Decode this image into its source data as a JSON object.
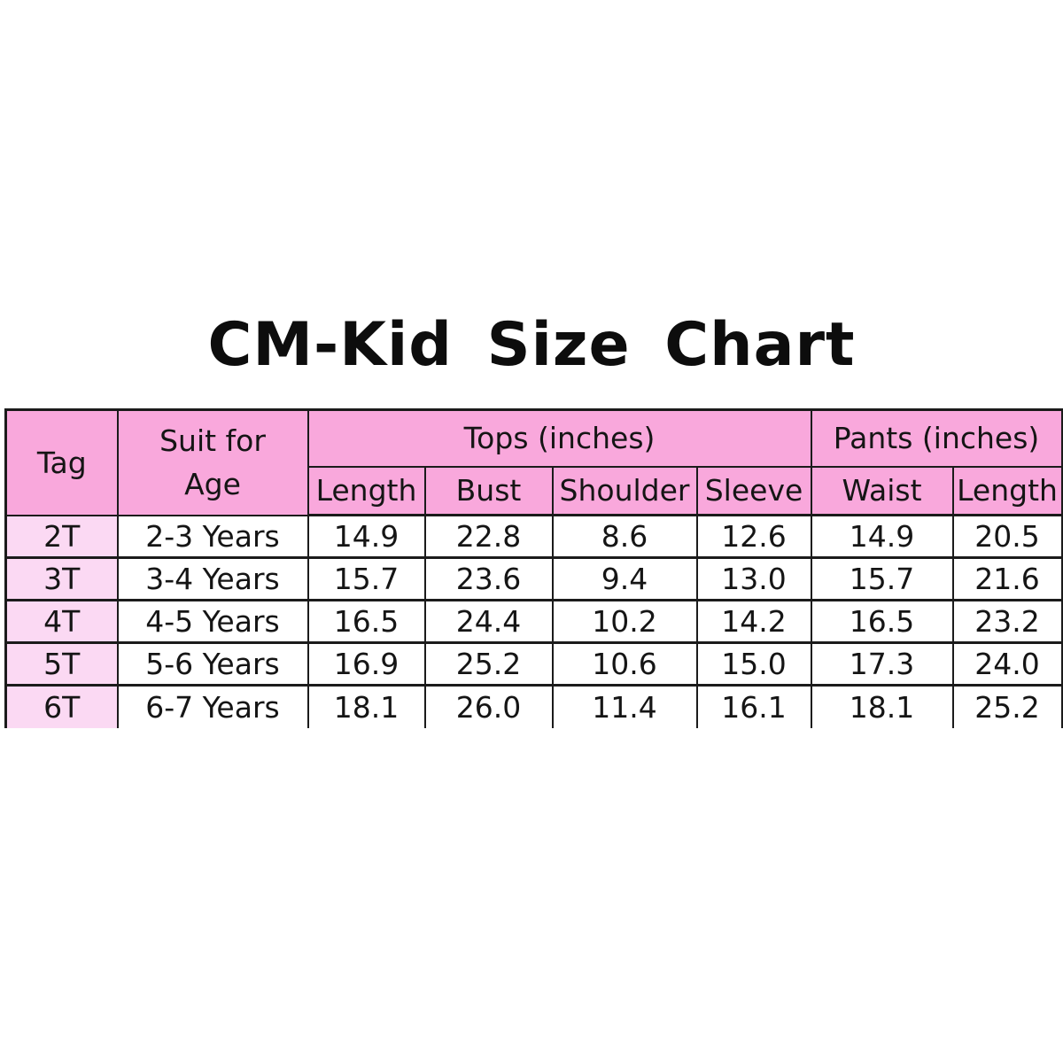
{
  "title": "CM-Kid Size Chart",
  "colors": {
    "header_pink": "#F9A8DC",
    "tag_column_pink": "#FBD9F3",
    "cell_white": "#FFFFFF",
    "border_black": "#1B1B1B",
    "background": "#FFFFFF"
  },
  "table": {
    "header": {
      "tag": "Tag",
      "age_line1": "Suit for",
      "age_line2": "Age",
      "tops_group": "Tops (inches)",
      "pants_group": "Pants (inches)",
      "tops_sub": [
        "Length",
        "Bust",
        "Shoulder",
        "Sleeve"
      ],
      "pants_sub": [
        "Waist",
        "Length"
      ]
    },
    "rows": [
      {
        "tag": "2T",
        "age": "2-3 Years",
        "values": [
          "14.9",
          "22.8",
          "8.6",
          "12.6",
          "14.9",
          "20.5"
        ]
      },
      {
        "tag": "3T",
        "age": "3-4 Years",
        "values": [
          "15.7",
          "23.6",
          "9.4",
          "13.0",
          "15.7",
          "21.6"
        ]
      },
      {
        "tag": "4T",
        "age": "4-5 Years",
        "values": [
          "16.5",
          "24.4",
          "10.2",
          "14.2",
          "16.5",
          "23.2"
        ]
      },
      {
        "tag": "5T",
        "age": "5-6 Years",
        "values": [
          "16.9",
          "25.2",
          "10.6",
          "15.0",
          "17.3",
          "24.0"
        ]
      },
      {
        "tag": "6T",
        "age": "6-7 Years",
        "values": [
          "18.1",
          "26.0",
          "11.4",
          "16.1",
          "18.1",
          "25.2"
        ]
      }
    ]
  },
  "chart_data": {
    "type": "table",
    "title": "CM-Kid Size Chart",
    "column_groups": [
      {
        "label": "",
        "columns": [
          "Tag",
          "Suit for Age"
        ]
      },
      {
        "label": "Tops (inches)",
        "columns": [
          "Length",
          "Bust",
          "Shoulder",
          "Sleeve"
        ]
      },
      {
        "label": "Pants (inches)",
        "columns": [
          "Waist",
          "Length"
        ]
      }
    ],
    "rows": [
      [
        "2T",
        "2-3 Years",
        14.9,
        22.8,
        8.6,
        12.6,
        14.9,
        20.5
      ],
      [
        "3T",
        "3-4 Years",
        15.7,
        23.6,
        9.4,
        13.0,
        15.7,
        21.6
      ],
      [
        "4T",
        "4-5 Years",
        16.5,
        24.4,
        10.2,
        14.2,
        16.5,
        23.2
      ],
      [
        "5T",
        "5-6 Years",
        16.9,
        25.2,
        10.6,
        15.0,
        17.3,
        24.0
      ],
      [
        "6T",
        "6-7 Years",
        18.1,
        26.0,
        11.4,
        16.1,
        18.1,
        25.2
      ]
    ]
  }
}
